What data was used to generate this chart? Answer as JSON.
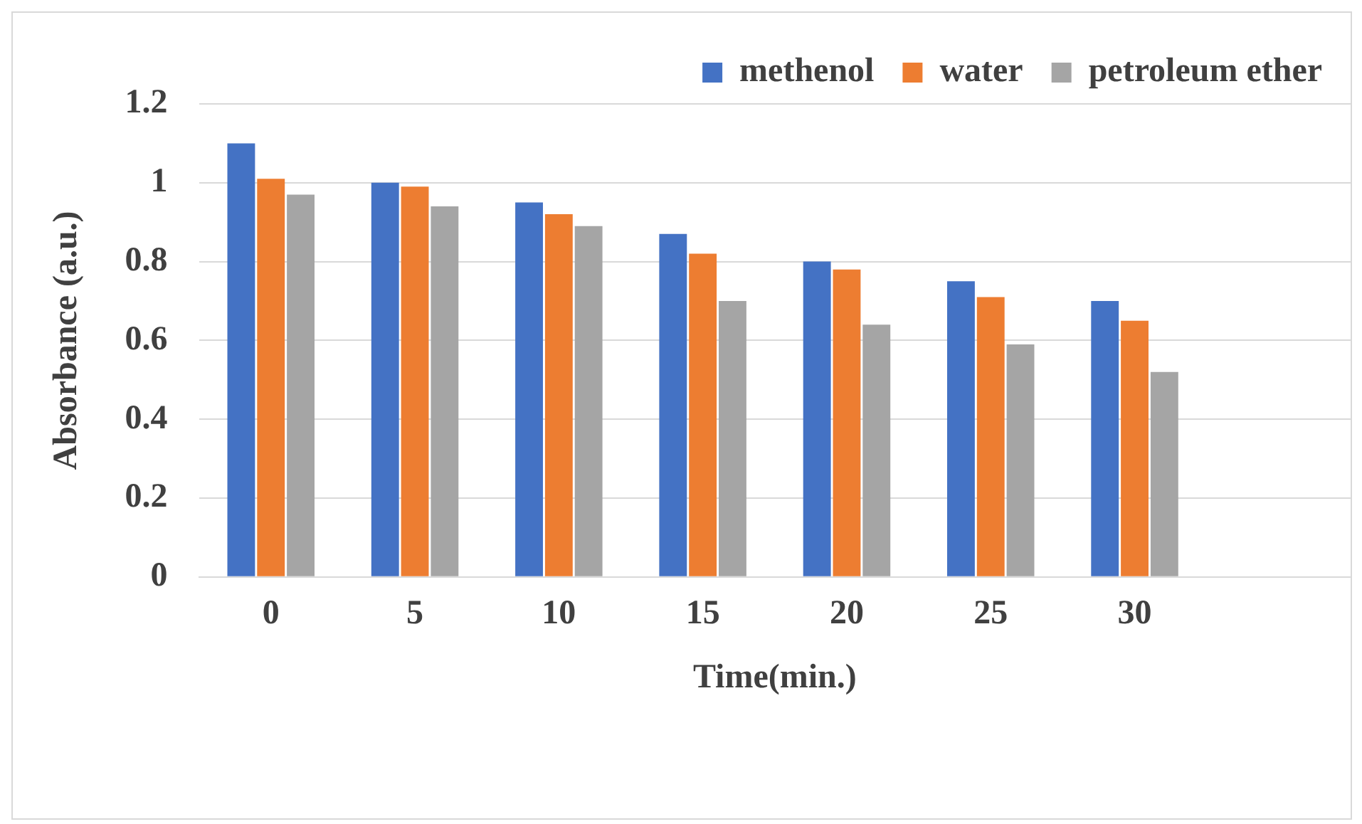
{
  "chart_data": {
    "type": "bar",
    "xlabel": "Time(min.)",
    "ylabel": "Absorbance (a.u.)",
    "categories": [
      "0",
      "5",
      "10",
      "15",
      "20",
      "25",
      "30",
      null
    ],
    "series": [
      {
        "name": "methenol",
        "color": "#4472c4",
        "values": [
          1.1,
          1.0,
          0.95,
          0.87,
          0.8,
          0.75,
          0.7,
          null
        ]
      },
      {
        "name": "water",
        "color": "#ed7d31",
        "values": [
          1.01,
          0.99,
          0.92,
          0.82,
          0.78,
          0.71,
          0.65,
          null
        ]
      },
      {
        "name": "petroleum ether",
        "color": "#a5a5a5",
        "values": [
          0.97,
          0.94,
          0.89,
          0.7,
          0.64,
          0.59,
          0.52,
          null
        ]
      }
    ],
    "ylim": [
      0,
      1.2
    ],
    "yticks": [
      0,
      0.2,
      0.4,
      0.6,
      0.8,
      1,
      1.2
    ],
    "grid": "y",
    "legend": "top right"
  }
}
